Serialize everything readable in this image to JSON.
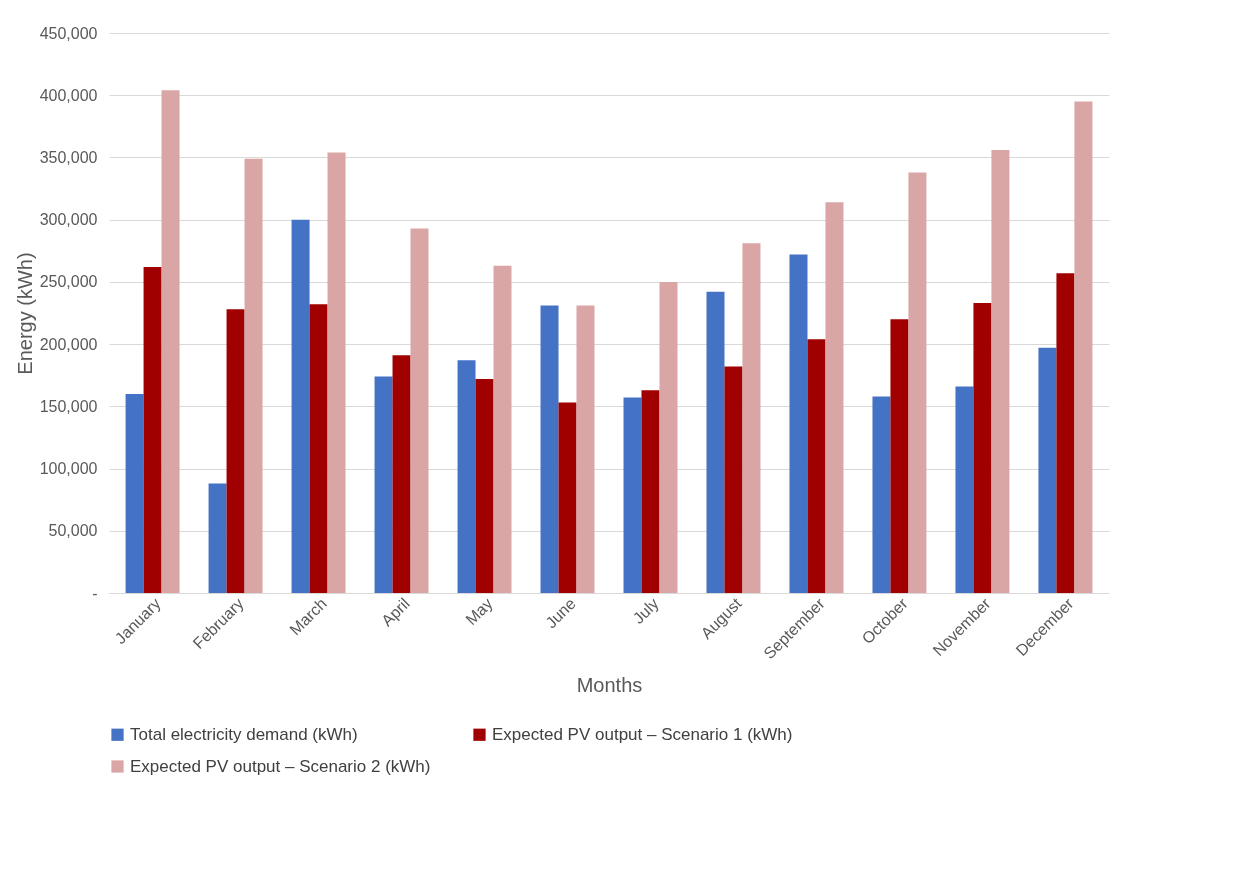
{
  "chart_data": {
    "type": "bar",
    "xlabel": "Months",
    "ylabel": "Energy (kWh)",
    "categories": [
      "January",
      "February",
      "March",
      "April",
      "May",
      "June",
      "July",
      "August",
      "September",
      "October",
      "November",
      "December"
    ],
    "series": [
      {
        "name": "Total electricity demand (kWh)",
        "color": "#4472c4",
        "values": [
          160000,
          88000,
          300000,
          174000,
          187000,
          231000,
          157000,
          242000,
          272000,
          158000,
          166000,
          197000
        ]
      },
      {
        "name": "Expected PV output – Scenario 1 (kWh)",
        "color": "#a00000",
        "values": [
          262000,
          228000,
          232000,
          191000,
          172000,
          153000,
          163000,
          182000,
          204000,
          220000,
          233000,
          257000
        ]
      },
      {
        "name": "Expected PV output – Scenario 2 (kWh)",
        "color": "#d9a5a5",
        "values": [
          404000,
          349000,
          354000,
          293000,
          263000,
          231000,
          250000,
          281000,
          314000,
          338000,
          356000,
          395000
        ]
      }
    ],
    "ylim": [
      0,
      450000
    ],
    "yticks": [
      {
        "value": 0,
        "label": "-"
      },
      {
        "value": 50000,
        "label": "50,000"
      },
      {
        "value": 100000,
        "label": "100,000"
      },
      {
        "value": 150000,
        "label": "150,000"
      },
      {
        "value": 200000,
        "label": "200,000"
      },
      {
        "value": 250000,
        "label": "250,000"
      },
      {
        "value": 300000,
        "label": "300,000"
      },
      {
        "value": 350000,
        "label": "350,000"
      },
      {
        "value": 400000,
        "label": "400,000"
      },
      {
        "value": 450000,
        "label": "450,000"
      }
    ],
    "grid": "y",
    "legend": "bottom"
  }
}
